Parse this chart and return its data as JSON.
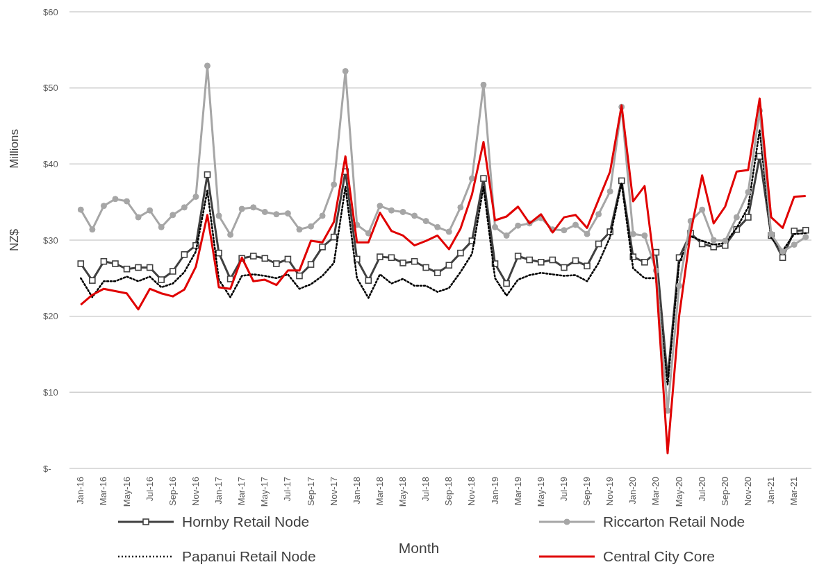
{
  "chart_data": {
    "type": "line",
    "xlabel": "Month",
    "ylabel": "NZ$",
    "annotations": [
      "Millions"
    ],
    "categories": [
      "Jan-16",
      null,
      "Mar-16",
      null,
      "May-16",
      null,
      "Jul-16",
      null,
      "Sep-16",
      null,
      "Nov-16",
      null,
      "Jan-17",
      null,
      "Mar-17",
      null,
      "May-17",
      null,
      "Jul-17",
      null,
      "Sep-17",
      null,
      "Nov-17",
      null,
      "Jan-18",
      null,
      "Mar-18",
      null,
      "May-18",
      null,
      "Jul-18",
      null,
      "Sep-18",
      null,
      "Nov-18",
      null,
      "Jan-19",
      null,
      "Mar-19",
      null,
      "May-19",
      null,
      "Jul-19",
      null,
      "Sep-19",
      null,
      "Nov-19",
      null,
      "Jan-20",
      null,
      "Mar-20",
      null,
      "May-20",
      null,
      "Jul-20",
      null,
      "Sep-20",
      null,
      "Nov-20",
      null,
      "Jan-21",
      null,
      "Mar-21",
      null
    ],
    "ylim": [
      0,
      60
    ],
    "yticks": [
      {
        "value": 0,
        "label": "$-"
      },
      {
        "value": 10,
        "label": "$10"
      },
      {
        "value": 20,
        "label": "$20"
      },
      {
        "value": 30,
        "label": "$30"
      },
      {
        "value": 40,
        "label": "$40"
      },
      {
        "value": 50,
        "label": "$50"
      },
      {
        "value": 60,
        "label": "$60"
      }
    ],
    "grid": "y",
    "legend": "bottom",
    "series": [
      {
        "name": "Hornby Retail Node",
        "color": "#404040",
        "marker": "square",
        "line_style": "solid",
        "values": [
          26.9,
          24.7,
          27.2,
          26.9,
          26.2,
          26.4,
          26.4,
          24.8,
          25.9,
          28.1,
          29.3,
          38.6,
          28.3,
          24.9,
          27.6,
          27.9,
          27.6,
          26.9,
          27.5,
          25.3,
          26.8,
          29.1,
          30.4,
          39.0,
          27.5,
          24.7,
          27.8,
          27.7,
          27.0,
          27.2,
          26.4,
          25.7,
          26.7,
          28.3,
          29.9,
          38.1,
          26.9,
          24.3,
          27.9,
          27.4,
          27.1,
          27.4,
          26.4,
          27.3,
          26.6,
          29.5,
          31.1,
          37.8,
          27.8,
          27.1,
          28.4,
          11.8,
          27.7,
          30.9,
          29.5,
          29.1,
          29.3,
          31.4,
          33.0,
          41.0,
          30.6,
          27.7,
          31.2,
          31.3
        ]
      },
      {
        "name": "Papanui Retail Node",
        "color": "#000000",
        "marker": "none",
        "line_style": "dotted",
        "values": [
          25.0,
          22.5,
          24.6,
          24.6,
          25.2,
          24.6,
          25.2,
          23.8,
          24.3,
          25.8,
          28.5,
          36.5,
          24.8,
          22.5,
          25.3,
          25.5,
          25.3,
          25.0,
          25.5,
          23.6,
          24.2,
          25.3,
          27.0,
          37.0,
          25.0,
          22.4,
          25.5,
          24.3,
          24.9,
          24.0,
          24.0,
          23.2,
          23.7,
          25.8,
          28.2,
          37.0,
          25.0,
          22.7,
          24.8,
          25.4,
          25.7,
          25.5,
          25.3,
          25.4,
          24.6,
          27.0,
          30.4,
          37.5,
          26.3,
          25.0,
          25.0,
          11.0,
          27.0,
          30.5,
          29.9,
          29.4,
          29.6,
          31.6,
          34.3,
          44.5,
          30.3,
          28.6,
          30.8,
          30.9
        ]
      },
      {
        "name": "Riccarton Retail Node",
        "color": "#a6a6a6",
        "marker": "circle",
        "line_style": "solid",
        "values": [
          34.0,
          31.4,
          34.5,
          35.4,
          35.1,
          33.0,
          33.9,
          31.7,
          33.3,
          34.3,
          35.7,
          52.9,
          33.2,
          30.7,
          34.1,
          34.3,
          33.7,
          33.4,
          33.5,
          31.4,
          31.8,
          33.2,
          37.3,
          52.2,
          32.0,
          30.9,
          34.5,
          33.9,
          33.7,
          33.2,
          32.5,
          31.7,
          31.1,
          34.3,
          38.1,
          50.4,
          31.7,
          30.6,
          31.9,
          32.2,
          32.9,
          31.4,
          31.3,
          32.0,
          30.8,
          33.4,
          36.4,
          47.5,
          30.8,
          30.6,
          26.0,
          7.6,
          24.0,
          32.5,
          34.0,
          30.0,
          29.9,
          33.0,
          36.3,
          47.0,
          30.8,
          28.5,
          29.4,
          30.4
        ]
      },
      {
        "name": "Central City Core",
        "color": "#e00000",
        "marker": "none",
        "line_style": "solid",
        "values": [
          21.5,
          22.8,
          23.6,
          23.3,
          23.0,
          20.9,
          23.6,
          23.0,
          22.6,
          23.5,
          26.5,
          33.3,
          23.8,
          23.6,
          27.7,
          24.6,
          24.8,
          24.1,
          26.0,
          26.0,
          29.9,
          29.7,
          32.4,
          41.0,
          29.7,
          29.7,
          33.6,
          31.2,
          30.6,
          29.3,
          29.9,
          30.6,
          28.8,
          31.5,
          36.0,
          42.9,
          32.6,
          33.1,
          34.4,
          32.2,
          33.4,
          31.0,
          33.0,
          33.3,
          31.6,
          35.3,
          39.0,
          47.7,
          35.1,
          37.1,
          25.0,
          2.0,
          20.0,
          31.0,
          38.5,
          32.2,
          34.4,
          39.0,
          39.2,
          48.6,
          33.0,
          31.6,
          35.7,
          35.8
        ]
      }
    ]
  }
}
